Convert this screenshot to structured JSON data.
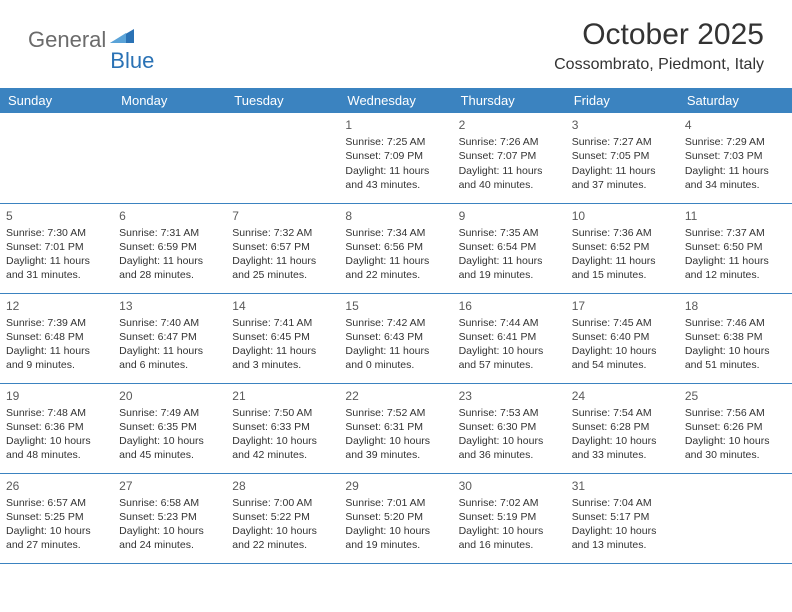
{
  "logo": {
    "text1": "General",
    "text2": "Blue"
  },
  "header": {
    "month_title": "October 2025",
    "location": "Cossombrato, Piedmont, Italy"
  },
  "colors": {
    "header_bg": "#3b83c0",
    "header_text": "#ffffff",
    "border": "#3b83c0",
    "logo_gray": "#6b6b6b",
    "logo_blue": "#2a72b5",
    "text": "#333333"
  },
  "weekdays": [
    "Sunday",
    "Monday",
    "Tuesday",
    "Wednesday",
    "Thursday",
    "Friday",
    "Saturday"
  ],
  "weeks": [
    [
      null,
      null,
      null,
      {
        "d": "1",
        "sr": "7:25 AM",
        "ss": "7:09 PM",
        "dl": "11 hours and 43 minutes."
      },
      {
        "d": "2",
        "sr": "7:26 AM",
        "ss": "7:07 PM",
        "dl": "11 hours and 40 minutes."
      },
      {
        "d": "3",
        "sr": "7:27 AM",
        "ss": "7:05 PM",
        "dl": "11 hours and 37 minutes."
      },
      {
        "d": "4",
        "sr": "7:29 AM",
        "ss": "7:03 PM",
        "dl": "11 hours and 34 minutes."
      }
    ],
    [
      {
        "d": "5",
        "sr": "7:30 AM",
        "ss": "7:01 PM",
        "dl": "11 hours and 31 minutes."
      },
      {
        "d": "6",
        "sr": "7:31 AM",
        "ss": "6:59 PM",
        "dl": "11 hours and 28 minutes."
      },
      {
        "d": "7",
        "sr": "7:32 AM",
        "ss": "6:57 PM",
        "dl": "11 hours and 25 minutes."
      },
      {
        "d": "8",
        "sr": "7:34 AM",
        "ss": "6:56 PM",
        "dl": "11 hours and 22 minutes."
      },
      {
        "d": "9",
        "sr": "7:35 AM",
        "ss": "6:54 PM",
        "dl": "11 hours and 19 minutes."
      },
      {
        "d": "10",
        "sr": "7:36 AM",
        "ss": "6:52 PM",
        "dl": "11 hours and 15 minutes."
      },
      {
        "d": "11",
        "sr": "7:37 AM",
        "ss": "6:50 PM",
        "dl": "11 hours and 12 minutes."
      }
    ],
    [
      {
        "d": "12",
        "sr": "7:39 AM",
        "ss": "6:48 PM",
        "dl": "11 hours and 9 minutes."
      },
      {
        "d": "13",
        "sr": "7:40 AM",
        "ss": "6:47 PM",
        "dl": "11 hours and 6 minutes."
      },
      {
        "d": "14",
        "sr": "7:41 AM",
        "ss": "6:45 PM",
        "dl": "11 hours and 3 minutes."
      },
      {
        "d": "15",
        "sr": "7:42 AM",
        "ss": "6:43 PM",
        "dl": "11 hours and 0 minutes."
      },
      {
        "d": "16",
        "sr": "7:44 AM",
        "ss": "6:41 PM",
        "dl": "10 hours and 57 minutes."
      },
      {
        "d": "17",
        "sr": "7:45 AM",
        "ss": "6:40 PM",
        "dl": "10 hours and 54 minutes."
      },
      {
        "d": "18",
        "sr": "7:46 AM",
        "ss": "6:38 PM",
        "dl": "10 hours and 51 minutes."
      }
    ],
    [
      {
        "d": "19",
        "sr": "7:48 AM",
        "ss": "6:36 PM",
        "dl": "10 hours and 48 minutes."
      },
      {
        "d": "20",
        "sr": "7:49 AM",
        "ss": "6:35 PM",
        "dl": "10 hours and 45 minutes."
      },
      {
        "d": "21",
        "sr": "7:50 AM",
        "ss": "6:33 PM",
        "dl": "10 hours and 42 minutes."
      },
      {
        "d": "22",
        "sr": "7:52 AM",
        "ss": "6:31 PM",
        "dl": "10 hours and 39 minutes."
      },
      {
        "d": "23",
        "sr": "7:53 AM",
        "ss": "6:30 PM",
        "dl": "10 hours and 36 minutes."
      },
      {
        "d": "24",
        "sr": "7:54 AM",
        "ss": "6:28 PM",
        "dl": "10 hours and 33 minutes."
      },
      {
        "d": "25",
        "sr": "7:56 AM",
        "ss": "6:26 PM",
        "dl": "10 hours and 30 minutes."
      }
    ],
    [
      {
        "d": "26",
        "sr": "6:57 AM",
        "ss": "5:25 PM",
        "dl": "10 hours and 27 minutes."
      },
      {
        "d": "27",
        "sr": "6:58 AM",
        "ss": "5:23 PM",
        "dl": "10 hours and 24 minutes."
      },
      {
        "d": "28",
        "sr": "7:00 AM",
        "ss": "5:22 PM",
        "dl": "10 hours and 22 minutes."
      },
      {
        "d": "29",
        "sr": "7:01 AM",
        "ss": "5:20 PM",
        "dl": "10 hours and 19 minutes."
      },
      {
        "d": "30",
        "sr": "7:02 AM",
        "ss": "5:19 PM",
        "dl": "10 hours and 16 minutes."
      },
      {
        "d": "31",
        "sr": "7:04 AM",
        "ss": "5:17 PM",
        "dl": "10 hours and 13 minutes."
      },
      null
    ]
  ],
  "labels": {
    "sunrise": "Sunrise:",
    "sunset": "Sunset:",
    "daylight": "Daylight:"
  }
}
